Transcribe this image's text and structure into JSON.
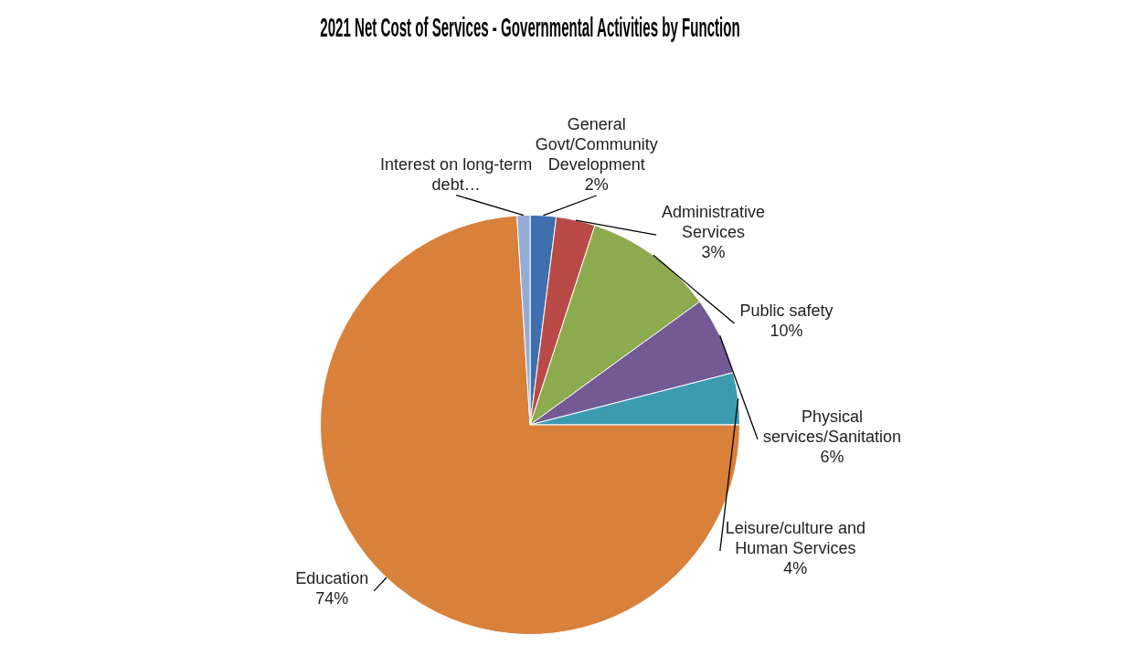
{
  "chart_data": {
    "type": "pie",
    "title": "2021 Net Cost of Services - Governmental Activities by Function",
    "categories": [
      "General Govt/Community Development",
      "Administrative Services",
      "Public safety",
      "Physical services/Sanitation",
      "Leisure/culture and Human Services",
      "Education",
      "Interest on long-term debt…"
    ],
    "values": [
      2,
      3,
      10,
      6,
      4,
      74,
      1
    ],
    "colors": [
      "#3f6fad",
      "#b94a48",
      "#8caa4e",
      "#735a95",
      "#3d9bb0",
      "#d9803a",
      "#93acd6"
    ],
    "value_labels": [
      "2%",
      "3%",
      "10%",
      "6%",
      "4%",
      "74%",
      null
    ]
  }
}
